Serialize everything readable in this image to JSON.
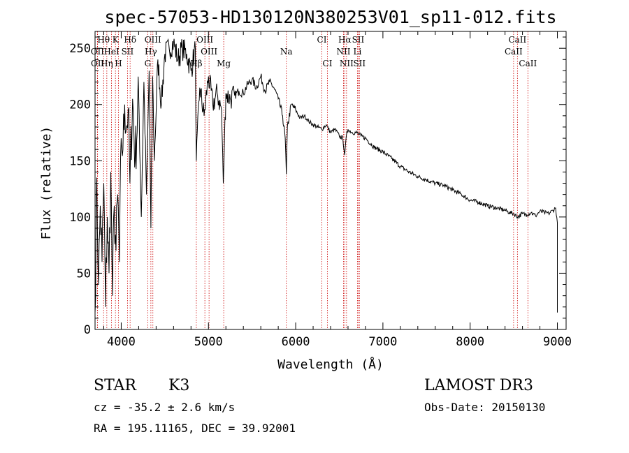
{
  "chart_data": {
    "type": "line",
    "title": "spec-57053-HD130120N380253V01_sp11-012.fits",
    "xlabel": "Wavelength (Å)",
    "ylabel": "Flux (relative)",
    "xlim": [
      3700,
      9100
    ],
    "ylim": [
      0,
      265
    ],
    "xticks": [
      4000,
      5000,
      6000,
      7000,
      8000,
      9000
    ],
    "yticks": [
      0,
      50,
      100,
      150,
      200,
      250
    ],
    "series": [
      {
        "name": "flux",
        "x": [
          3700,
          3720,
          3740,
          3760,
          3780,
          3800,
          3820,
          3840,
          3860,
          3880,
          3900,
          3920,
          3940,
          3960,
          3980,
          4000,
          4020,
          4040,
          4060,
          4080,
          4100,
          4130,
          4160,
          4200,
          4230,
          4260,
          4290,
          4320,
          4340,
          4360,
          4380,
          4420,
          4460,
          4500,
          4550,
          4600,
          4650,
          4700,
          4750,
          4800,
          4850,
          4861,
          4900,
          4950,
          5000,
          5050,
          5100,
          5150,
          5170,
          5184,
          5200,
          5250,
          5300,
          5350,
          5400,
          5450,
          5500,
          5550,
          5600,
          5650,
          5700,
          5750,
          5800,
          5850,
          5880,
          5893,
          5905,
          5950,
          6000,
          6050,
          6100,
          6150,
          6200,
          6250,
          6300,
          6350,
          6400,
          6450,
          6500,
          6540,
          6563,
          6580,
          6600,
          6650,
          6700,
          6750,
          6800,
          6900,
          7000,
          7100,
          7200,
          7300,
          7400,
          7500,
          7600,
          7700,
          7800,
          7900,
          8000,
          8100,
          8200,
          8300,
          8400,
          8450,
          8500,
          8542,
          8600,
          8650,
          8700,
          8750,
          8800,
          8850,
          8900,
          8950,
          8980,
          9000
        ],
        "y": [
          15,
          135,
          40,
          110,
          60,
          130,
          20,
          100,
          50,
          140,
          30,
          110,
          70,
          120,
          60,
          170,
          160,
          200,
          180,
          195,
          130,
          205,
          150,
          210,
          100,
          220,
          120,
          230,
          90,
          225,
          150,
          240,
          200,
          245,
          250,
          255,
          240,
          250,
          245,
          230,
          250,
          150,
          215,
          190,
          225,
          200,
          210,
          195,
          130,
          170,
          210,
          205,
          208,
          212,
          210,
          218,
          222,
          215,
          225,
          212,
          220,
          215,
          205,
          190,
          170,
          138,
          180,
          200,
          195,
          188,
          190,
          185,
          182,
          180,
          178,
          182,
          175,
          178,
          172,
          170,
          155,
          172,
          178,
          175,
          175,
          172,
          170,
          162,
          158,
          152,
          145,
          140,
          136,
          133,
          130,
          128,
          124,
          120,
          115,
          113,
          110,
          108,
          106,
          104,
          103,
          100,
          103,
          102,
          104,
          101,
          105,
          104,
          103,
          106,
          108,
          95
        ]
      }
    ],
    "spectral_lines": [
      {
        "label": "Hθ",
        "wavelength": 3798,
        "row": 0
      },
      {
        "label": "K",
        "wavelength": 3934,
        "row": 0
      },
      {
        "label": "Hδ",
        "wavelength": 4102,
        "row": 0
      },
      {
        "label": "OIII",
        "wavelength": 4363,
        "row": 0
      },
      {
        "label": "OIII",
        "wavelength": 4959,
        "row": 0
      },
      {
        "label": "CI",
        "wavelength": 6300,
        "row": 0
      },
      {
        "label": "Hα",
        "wavelength": 6563,
        "row": 0
      },
      {
        "label": "SII",
        "wavelength": 6716,
        "row": 0
      },
      {
        "label": "CaII",
        "wavelength": 8542,
        "row": 0
      },
      {
        "label": "OII",
        "wavelength": 3727,
        "row": 1
      },
      {
        "label": "HeI",
        "wavelength": 3889,
        "row": 1
      },
      {
        "label": "SII",
        "wavelength": 4072,
        "row": 1
      },
      {
        "label": "Hγ",
        "wavelength": 4340,
        "row": 1
      },
      {
        "label": "OIII",
        "wavelength": 5007,
        "row": 1
      },
      {
        "label": "Na",
        "wavelength": 5893,
        "row": 1
      },
      {
        "label": "NII",
        "wavelength": 6548,
        "row": 1
      },
      {
        "label": "Li",
        "wavelength": 6708,
        "row": 1
      },
      {
        "label": "CaII",
        "wavelength": 8498,
        "row": 1
      },
      {
        "label": "OII",
        "wavelength": 3729,
        "row": 2
      },
      {
        "label": "Hη",
        "wavelength": 3835,
        "row": 2
      },
      {
        "label": "H",
        "wavelength": 3968,
        "row": 2
      },
      {
        "label": "G",
        "wavelength": 4304,
        "row": 2
      },
      {
        "label": "Hβ",
        "wavelength": 4861,
        "row": 2
      },
      {
        "label": "Mg",
        "wavelength": 5175,
        "row": 2
      },
      {
        "label": "CI",
        "wavelength": 6364,
        "row": 2
      },
      {
        "label": "NII",
        "wavelength": 6583,
        "row": 2
      },
      {
        "label": "SII",
        "wavelength": 6731,
        "row": 2
      },
      {
        "label": "CaII",
        "wavelength": 8662,
        "row": 2
      }
    ]
  },
  "info": {
    "class_label": "STAR",
    "subclass": "K3",
    "survey": "LAMOST DR3",
    "cz": "cz = -35.2 ± 2.6 km/s",
    "obs_date": "Obs-Date: 20150130",
    "radec": "RA = 195.11165, DEC =  39.92001"
  },
  "colors": {
    "spectrum": "#000000",
    "line_marker": "#cc0000",
    "axes": "#000000"
  }
}
